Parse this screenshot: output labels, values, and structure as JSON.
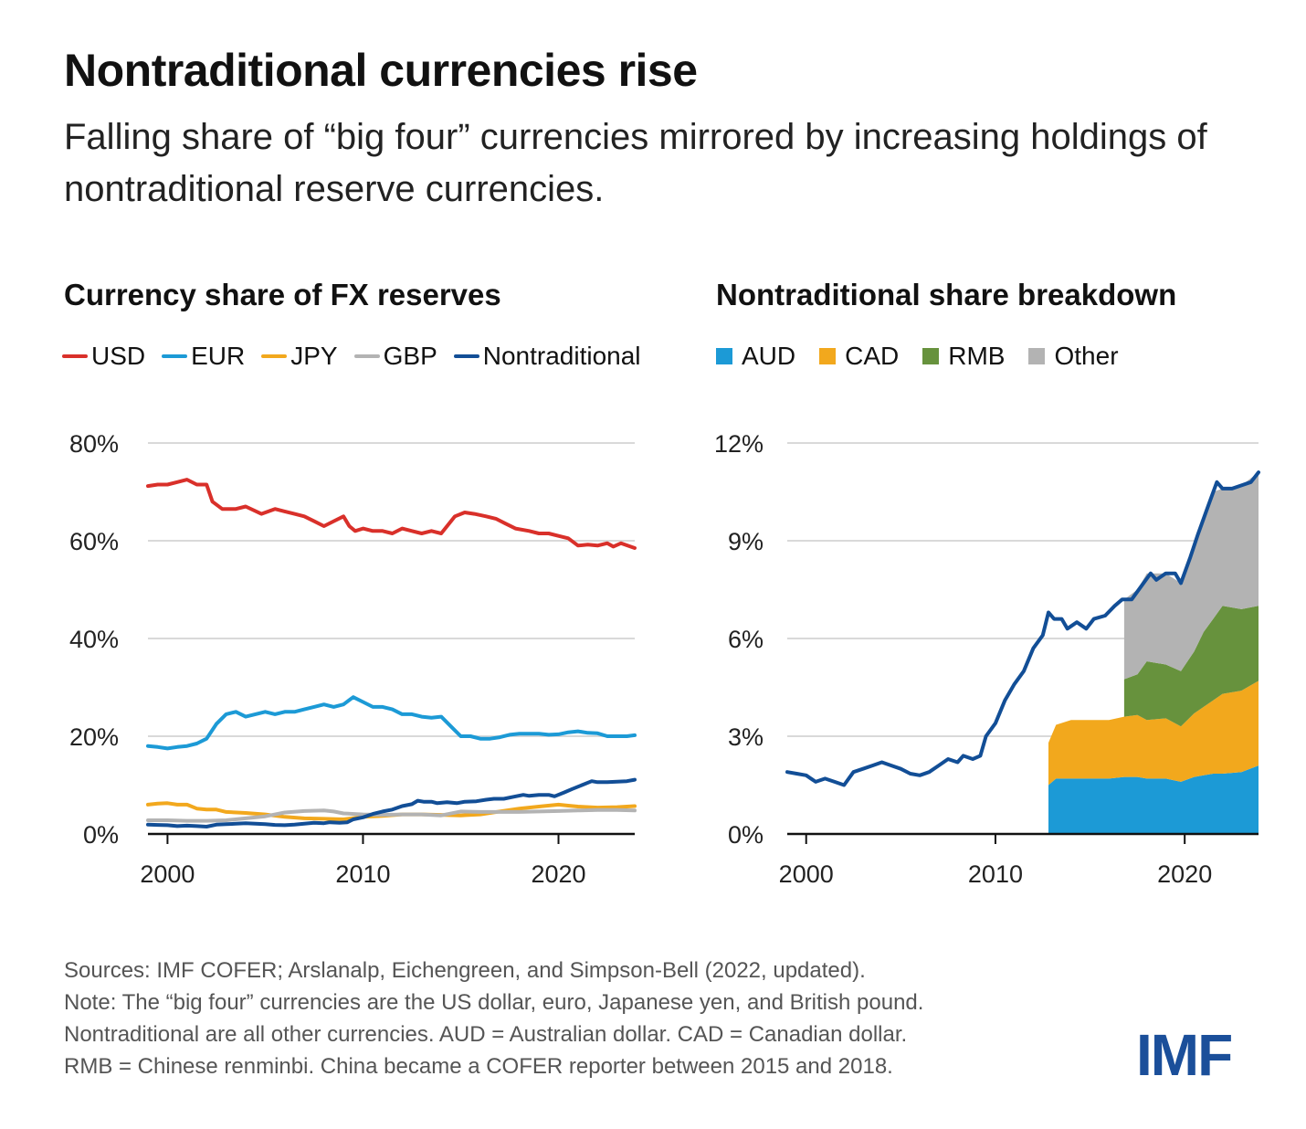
{
  "title": "Nontraditional currencies rise",
  "subtitle": "Falling share of “big four” currencies mirrored by increasing holdings of nontraditional reserve currencies.",
  "notes": [
    "Sources: IMF COFER; Arslanalp, Eichengreen, and Simpson-Bell (2022, updated).",
    "Note: The “big four” currencies are the US dollar, euro, Japanese yen, and British pound.",
    "Nontraditional are all other currencies. AUD = Australian dollar. CAD = Canadian dollar.",
    "RMB = Chinese renminbi. China became a COFER reporter between 2015 and 2018."
  ],
  "logo": "IMF",
  "chart_data": [
    {
      "type": "line",
      "title": "Currency share of FX reserves",
      "xlim": [
        1999,
        2023.9
      ],
      "ylim": [
        0,
        80
      ],
      "xticks": [
        2000,
        2010,
        2020
      ],
      "xtick_labels": [
        "2000",
        "2010",
        "2020"
      ],
      "yticks": [
        0,
        20,
        40,
        60,
        80
      ],
      "ytick_labels": [
        "0%",
        "20%",
        "40%",
        "60%",
        "80%"
      ],
      "grid": true,
      "legend": "top",
      "series": [
        {
          "name": "USD",
          "color": "#d9302a",
          "x": [
            1999,
            1999.5,
            2000,
            2000.5,
            2001,
            2001.5,
            2002,
            2002.3,
            2002.8,
            2003.5,
            2004,
            2004.8,
            2005.5,
            2006,
            2006.5,
            2007,
            2007.5,
            2008,
            2008.5,
            2009,
            2009.3,
            2009.6,
            2010,
            2010.5,
            2011,
            2011.5,
            2012,
            2012.5,
            2013,
            2013.5,
            2014,
            2014.3,
            2014.7,
            2015.2,
            2015.7,
            2016.3,
            2016.8,
            2017.3,
            2017.8,
            2018.5,
            2019,
            2019.5,
            2020,
            2020.5,
            2021,
            2021.5,
            2022,
            2022.5,
            2022.8,
            2023.2,
            2023.9
          ],
          "values": [
            71.2,
            71.5,
            71.5,
            72,
            72.5,
            71.5,
            71.5,
            68,
            66.5,
            66.5,
            67,
            65.5,
            66.5,
            66,
            65.5,
            65,
            64,
            63,
            64,
            65,
            63,
            62,
            62.5,
            62,
            62,
            61.5,
            62.5,
            62,
            61.5,
            62,
            61.5,
            63,
            65,
            65.8,
            65.5,
            65,
            64.5,
            63.5,
            62.5,
            62,
            61.5,
            61.5,
            61,
            60.5,
            59,
            59.2,
            59,
            59.5,
            58.8,
            59.5,
            58.5
          ]
        },
        {
          "name": "EUR",
          "color": "#1c9ad6",
          "x": [
            1999,
            1999.5,
            2000,
            2000.5,
            2001,
            2001.5,
            2002,
            2002.5,
            2003,
            2003.5,
            2004,
            2004.5,
            2005,
            2005.5,
            2006,
            2006.5,
            2007,
            2007.5,
            2008,
            2008.5,
            2009,
            2009.5,
            2010,
            2010.5,
            2011,
            2011.5,
            2012,
            2012.5,
            2013,
            2013.5,
            2014,
            2014.5,
            2015,
            2015.5,
            2016,
            2016.5,
            2017,
            2017.5,
            2018,
            2018.5,
            2019,
            2019.5,
            2020,
            2020.5,
            2021,
            2021.5,
            2022,
            2022.5,
            2023,
            2023.5,
            2023.9
          ],
          "values": [
            18,
            17.8,
            17.5,
            17.8,
            18,
            18.5,
            19.5,
            22.5,
            24.5,
            25,
            24,
            24.5,
            25,
            24.5,
            25,
            25,
            25.5,
            26,
            26.5,
            26,
            26.5,
            28,
            27,
            26,
            26,
            25.5,
            24.5,
            24.5,
            24,
            23.8,
            24,
            22,
            20,
            20,
            19.5,
            19.5,
            19.8,
            20.3,
            20.5,
            20.5,
            20.5,
            20.3,
            20.4,
            20.8,
            21,
            20.7,
            20.6,
            20,
            20,
            20,
            20.2
          ]
        },
        {
          "name": "JPY",
          "color": "#f2a81d",
          "x": [
            1999,
            1999.5,
            2000,
            2000.5,
            2001,
            2001.5,
            2002,
            2002.5,
            2003,
            2004,
            2005,
            2006,
            2007,
            2008,
            2009,
            2010,
            2011,
            2012,
            2013,
            2014,
            2015,
            2016,
            2017,
            2018,
            2019,
            2020,
            2020.5,
            2021,
            2022,
            2023,
            2023.9
          ],
          "values": [
            6,
            6.2,
            6.3,
            6,
            6,
            5.2,
            5,
            5,
            4.5,
            4.3,
            4,
            3.5,
            3.2,
            3.1,
            3,
            3.5,
            3.7,
            4,
            4,
            3.9,
            3.8,
            4,
            4.6,
            5.2,
            5.6,
            6,
            5.8,
            5.6,
            5.4,
            5.5,
            5.7
          ]
        },
        {
          "name": "GBP",
          "color": "#b3b3b3",
          "x": [
            1999,
            2000,
            2001,
            2002,
            2003,
            2004,
            2005,
            2006,
            2007,
            2008,
            2008.5,
            2009,
            2010,
            2011,
            2012,
            2013,
            2014,
            2015,
            2016,
            2017,
            2018,
            2019,
            2020,
            2021,
            2022,
            2023,
            2023.9
          ],
          "values": [
            2.8,
            2.8,
            2.7,
            2.7,
            2.8,
            3.2,
            3.6,
            4.4,
            4.7,
            4.8,
            4.6,
            4.2,
            4,
            3.9,
            4,
            4,
            3.8,
            4.6,
            4.5,
            4.5,
            4.5,
            4.6,
            4.7,
            4.8,
            4.9,
            4.9,
            4.8
          ]
        },
        {
          "name": "Nontraditional",
          "color": "#124e96",
          "x": [
            1999,
            1999.5,
            2000,
            2000.5,
            2001,
            2001.5,
            2002,
            2002.5,
            2003,
            2003.5,
            2004,
            2004.5,
            2005,
            2005.5,
            2006,
            2006.5,
            2007,
            2007.5,
            2008,
            2008.3,
            2008.8,
            2009.2,
            2009.5,
            2010,
            2010.5,
            2011,
            2011.5,
            2012,
            2012.5,
            2012.8,
            2013.1,
            2013.5,
            2013.8,
            2014.3,
            2014.8,
            2015.2,
            2015.8,
            2016.3,
            2016.7,
            2017.2,
            2017.7,
            2018.2,
            2018.5,
            2019,
            2019.5,
            2019.8,
            2020.3,
            2020.7,
            2021.2,
            2021.7,
            2022,
            2022.5,
            2023,
            2023.5,
            2023.9
          ],
          "values": [
            1.9,
            1.85,
            1.8,
            1.6,
            1.7,
            1.6,
            1.5,
            1.9,
            2,
            2.1,
            2.2,
            2.1,
            2,
            1.85,
            1.8,
            1.9,
            2.1,
            2.3,
            2.2,
            2.4,
            2.3,
            2.4,
            3,
            3.4,
            4.1,
            4.6,
            5,
            5.7,
            6.1,
            6.8,
            6.6,
            6.6,
            6.3,
            6.5,
            6.3,
            6.6,
            6.7,
            7,
            7.2,
            7.2,
            7.6,
            8,
            7.8,
            8,
            8,
            7.7,
            8.5,
            9.2,
            10,
            10.8,
            10.6,
            10.6,
            10.7,
            10.8,
            11.1
          ]
        }
      ]
    },
    {
      "type": "area",
      "title": "Nontraditional share breakdown",
      "xlim": [
        1999,
        2023.9
      ],
      "ylim": [
        0,
        12
      ],
      "xticks": [
        2000,
        2010,
        2020
      ],
      "xtick_labels": [
        "2000",
        "2010",
        "2020"
      ],
      "yticks": [
        0,
        3,
        6,
        9,
        12
      ],
      "ytick_labels": [
        "0%",
        "3%",
        "6%",
        "9%",
        "12%"
      ],
      "grid": true,
      "legend": "top",
      "stacked": true,
      "x": [
        2012.8,
        2013.2,
        2014,
        2015,
        2016,
        2016.8,
        2017.5,
        2018,
        2019,
        2019.8,
        2020.5,
        2021,
        2021.5,
        2022,
        2023,
        2023.9
      ],
      "series": [
        {
          "name": "AUD",
          "color": "#1c9ad6",
          "values": [
            1.5,
            1.7,
            1.7,
            1.7,
            1.7,
            1.75,
            1.75,
            1.7,
            1.7,
            1.6,
            1.75,
            1.8,
            1.85,
            1.85,
            1.9,
            2.1
          ]
        },
        {
          "name": "CAD",
          "color": "#f2a81d",
          "values": [
            1.3,
            1.65,
            1.8,
            1.8,
            1.8,
            1.85,
            1.9,
            1.8,
            1.85,
            1.7,
            1.95,
            2.1,
            2.25,
            2.45,
            2.5,
            2.6
          ]
        },
        {
          "name": "RMB",
          "color": "#67923d",
          "values": [
            null,
            null,
            null,
            null,
            null,
            1.15,
            1.25,
            1.8,
            1.65,
            1.7,
            1.9,
            2.3,
            2.5,
            2.7,
            2.5,
            2.3
          ]
        },
        {
          "name": "Other",
          "color": "#b3b3b3",
          "values": [
            null,
            null,
            null,
            null,
            null,
            2.45,
            2.6,
            2.7,
            2.8,
            2.7,
            3.3,
            3.4,
            3.9,
            3.6,
            3.8,
            4.1
          ]
        }
      ],
      "total_line": {
        "name": "Nontraditional",
        "color": "#124e96",
        "same_as": "left-chart Nontraditional series"
      }
    }
  ]
}
